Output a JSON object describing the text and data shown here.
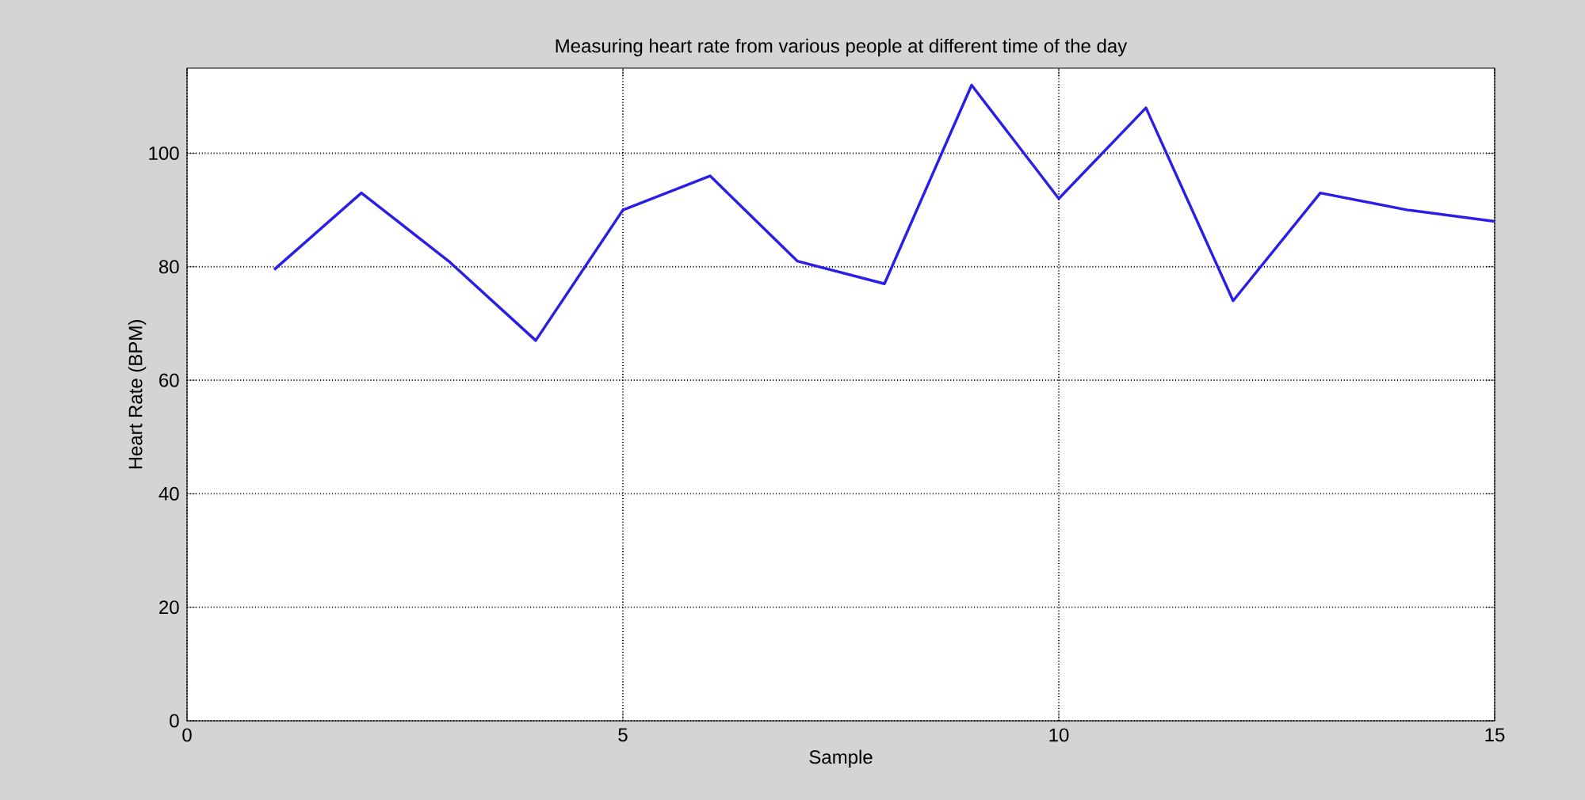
{
  "chart_data": {
    "type": "line",
    "title": "Measuring heart rate from various people at different time of the day",
    "xlabel": "Sample",
    "ylabel": "Heart Rate (BPM)",
    "x": [
      1,
      2,
      3,
      4,
      5,
      6,
      7,
      8,
      9,
      10,
      11,
      12,
      13,
      14,
      15
    ],
    "series": [
      {
        "color": "#2b1fe6",
        "values": [
          79.5,
          93,
          81,
          67,
          90,
          96,
          81,
          77,
          112,
          92,
          108,
          74,
          93,
          90,
          88
        ]
      }
    ],
    "xlim": [
      0,
      15
    ],
    "ylim": [
      0,
      115
    ],
    "xticks": [
      0,
      5,
      10,
      15
    ],
    "yticks": [
      0,
      20,
      40,
      60,
      80,
      100
    ],
    "grid": true,
    "marker": "none",
    "line_style": "solid"
  }
}
